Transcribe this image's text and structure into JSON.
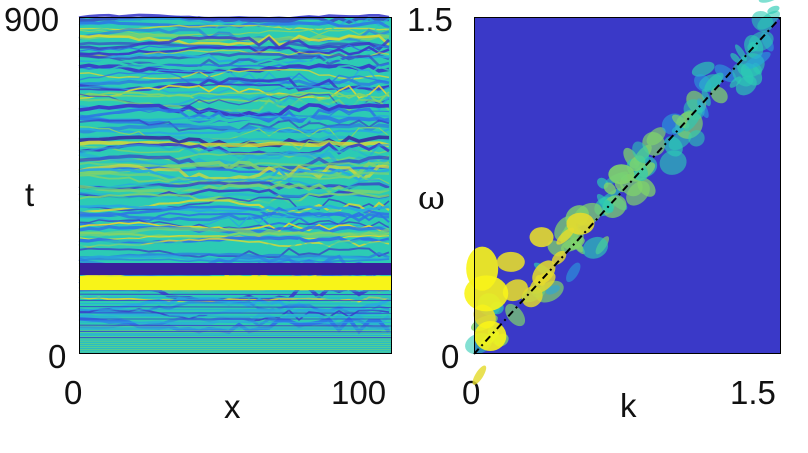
{
  "colors": {
    "background": "#ffffff",
    "frame": "#000000",
    "colormap": [
      "#3a1f9a",
      "#3a39c8",
      "#2d74e6",
      "#28a9df",
      "#2ccbb4",
      "#7fd46b",
      "#e4da2d",
      "#f8f418"
    ],
    "dispersion_line": "#000000"
  },
  "chart_data": [
    {
      "type": "heatmap",
      "id": "left_panel",
      "xlabel": "x",
      "ylabel": "t",
      "xlim": [
        0,
        100
      ],
      "ylim": [
        0,
        900
      ],
      "xticks": [
        "0",
        "100"
      ],
      "yticks": [
        "0",
        "900"
      ],
      "description": "Spatiotemporal field with horizontal striations",
      "features": [
        {
          "name": "bright_band",
          "t": 200,
          "level": 0.98
        },
        {
          "name": "dark_band",
          "t": 235,
          "level": 0.05
        }
      ]
    },
    {
      "type": "heatmap",
      "id": "right_panel",
      "xlabel": "k",
      "ylabel": "ω",
      "xlim": [
        0,
        1.5
      ],
      "ylim": [
        0,
        1.5
      ],
      "xticks": [
        "0",
        "1.5"
      ],
      "yticks": [
        "0",
        "1.5"
      ],
      "reference_line": {
        "x": [
          0,
          1.5
        ],
        "y": [
          0,
          1.5
        ]
      },
      "concentration": "Energy concentrated along ω = k"
    }
  ]
}
